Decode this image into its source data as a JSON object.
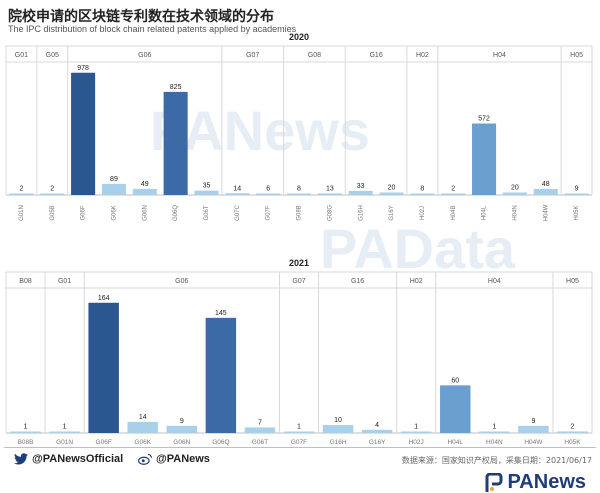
{
  "header": {
    "title": "院校申请的区块链专利数在技术领域的分布",
    "subtitle": "The IPC distribution of block chain related patents applied by academies"
  },
  "watermarks": [
    "PANews",
    "PAData"
  ],
  "colors": {
    "dark": "#2b5790",
    "mid": "#3b6aa6",
    "medium": "#6b9fcf",
    "light": "#a9d0ea",
    "grid": "#d9d9d9"
  },
  "chart_data": [
    {
      "type": "bar",
      "title": "2020",
      "groups": [
        {
          "name": "G01",
          "categories": [
            "G01N"
          ]
        },
        {
          "name": "G05",
          "categories": [
            "G05B"
          ]
        },
        {
          "name": "G06",
          "categories": [
            "G06F",
            "G06K",
            "G06N",
            "G06Q",
            "G06T"
          ]
        },
        {
          "name": "G07",
          "categories": [
            "G07C",
            "G07F"
          ]
        },
        {
          "name": "G08",
          "categories": [
            "G08B",
            "G08G"
          ]
        },
        {
          "name": "G16",
          "categories": [
            "G16H",
            "G16Y"
          ]
        },
        {
          "name": "H02",
          "categories": [
            "H02J"
          ]
        },
        {
          "name": "H04",
          "categories": [
            "H04B",
            "H04L",
            "H04N",
            "H04W"
          ]
        },
        {
          "name": "H05",
          "categories": [
            "H05K"
          ]
        }
      ],
      "categories": [
        "G01N",
        "G05B",
        "G06F",
        "G06K",
        "G06N",
        "G06Q",
        "G06T",
        "G07C",
        "G07F",
        "G08B",
        "G08G",
        "G16H",
        "G16Y",
        "H02J",
        "H04B",
        "H04L",
        "H04N",
        "H04W",
        "H05K"
      ],
      "values": [
        2,
        2,
        978,
        89,
        49,
        825,
        35,
        14,
        6,
        8,
        13,
        33,
        20,
        8,
        2,
        572,
        20,
        48,
        9
      ],
      "ylim": [
        0,
        1000
      ]
    },
    {
      "type": "bar",
      "title": "2021",
      "groups": [
        {
          "name": "B08",
          "categories": [
            "B08B"
          ]
        },
        {
          "name": "G01",
          "categories": [
            "G01N"
          ]
        },
        {
          "name": "G06",
          "categories": [
            "G06F",
            "G06K",
            "G06N",
            "G06Q",
            "G06T"
          ]
        },
        {
          "name": "G07",
          "categories": [
            "G07F"
          ]
        },
        {
          "name": "G16",
          "categories": [
            "G16H",
            "G16Y"
          ]
        },
        {
          "name": "H02",
          "categories": [
            "H02J"
          ]
        },
        {
          "name": "H04",
          "categories": [
            "H04L",
            "H04N",
            "H04W"
          ]
        },
        {
          "name": "H05",
          "categories": [
            "H05K"
          ]
        }
      ],
      "categories": [
        "B08B",
        "G01N",
        "G06F",
        "G06K",
        "G06N",
        "G06Q",
        "G06T",
        "G07F",
        "G16H",
        "G16Y",
        "H02J",
        "H04L",
        "H04N",
        "H04W",
        "H05K"
      ],
      "values": [
        1,
        1,
        164,
        14,
        9,
        145,
        7,
        1,
        10,
        4,
        1,
        60,
        1,
        9,
        2
      ],
      "ylim": [
        0,
        170
      ]
    }
  ],
  "footer": {
    "twitter": "@PANewsOfficial",
    "weibo": "@PANews",
    "source": "数据来源：国家知识产权局，采集日期：2021/06/17",
    "logo": "PANews"
  }
}
